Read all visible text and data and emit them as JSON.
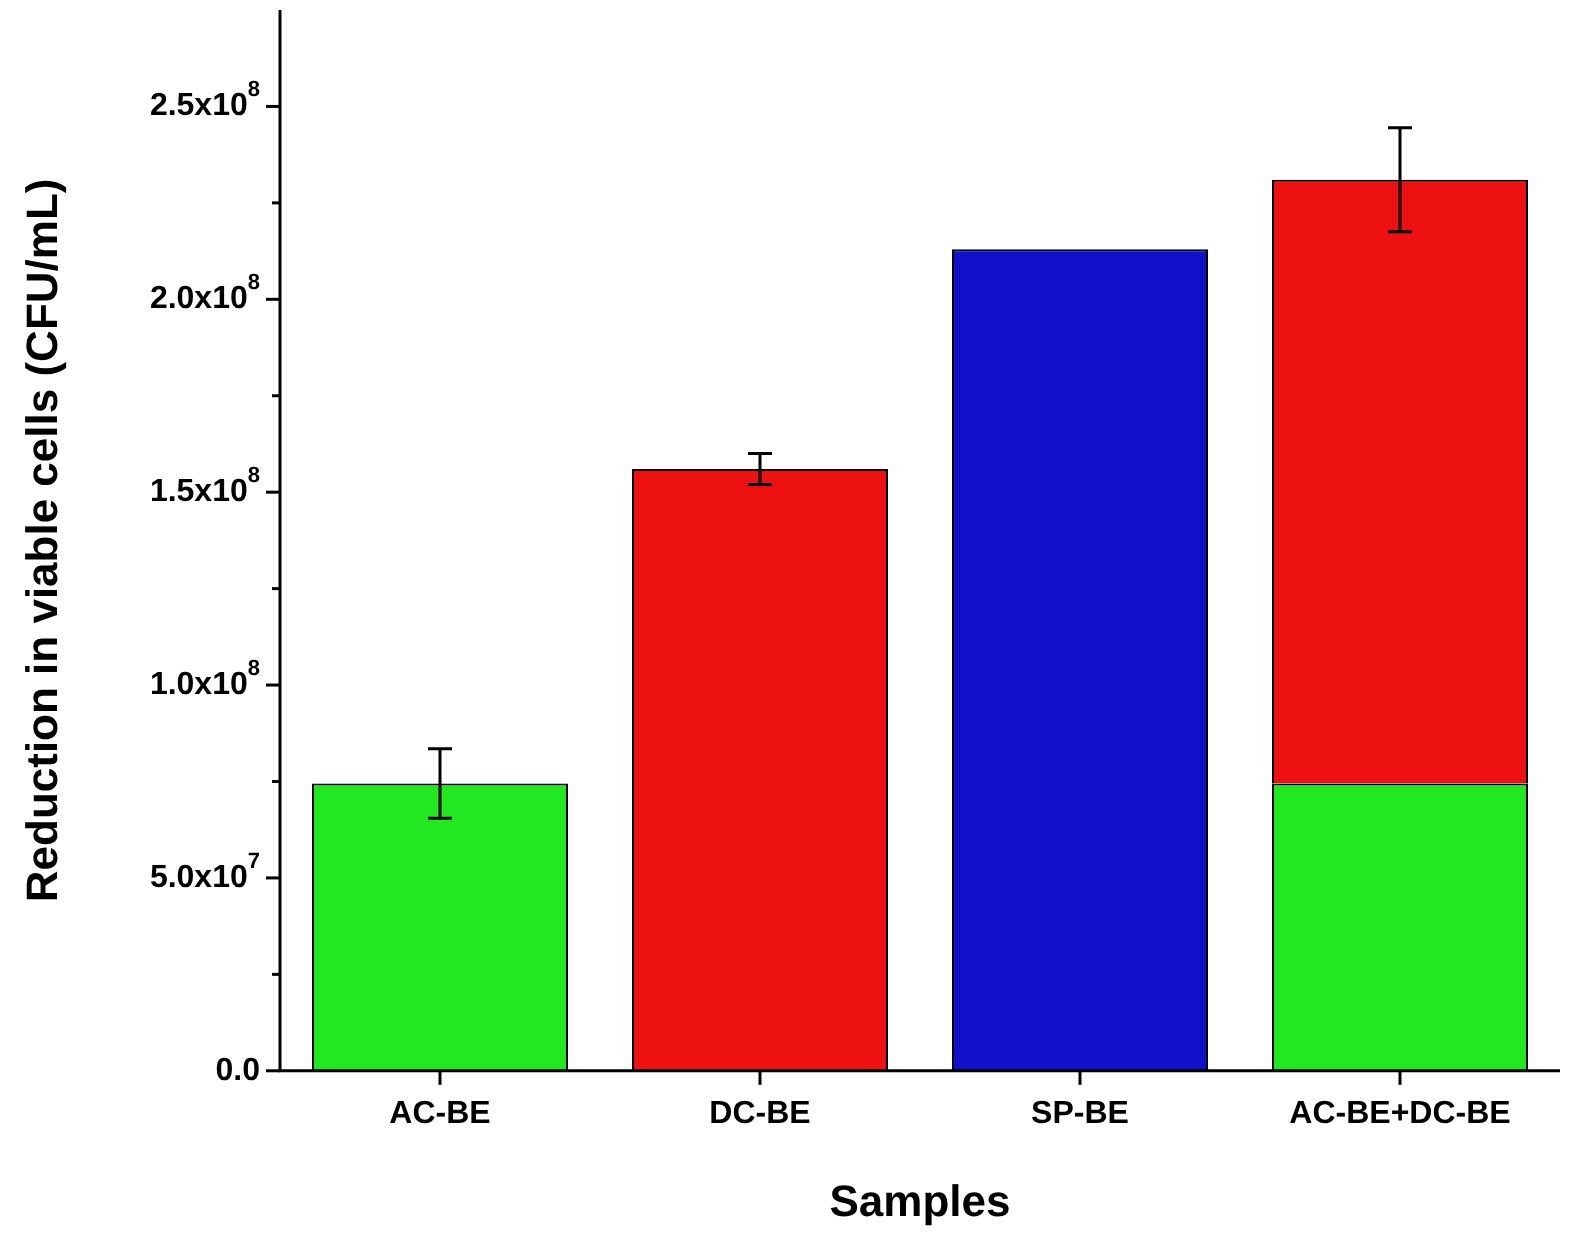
{
  "chart_data": {
    "type": "bar",
    "stacked": true,
    "xlabel": "Samples",
    "ylabel": "Reduction in viable cells (CFU/mL)",
    "categories": [
      "AC-BE",
      "DC-BE",
      "SP-BE",
      "AC-BE+DC-BE"
    ],
    "series": [
      {
        "color": "#22e822",
        "values": [
          74500000,
          null,
          null,
          74500000
        ],
        "errors": [
          9000000,
          null,
          null,
          null
        ]
      },
      {
        "color": "#ee1111",
        "values": [
          null,
          156000000,
          null,
          156500000
        ],
        "errors": [
          null,
          4000000,
          null,
          13500000
        ]
      },
      {
        "color": "#1111cc",
        "values": [
          null,
          null,
          213000000,
          null
        ]
      }
    ],
    "ylim": [
      0,
      275000000
    ],
    "yticks": [
      {
        "value": 0,
        "label": "0.0"
      },
      {
        "value": 25000000,
        "label": null
      },
      {
        "value": 50000000,
        "label": "5.0x10$^{7}$"
      },
      {
        "value": 75000000,
        "label": null
      },
      {
        "value": 100000000,
        "label": "1.0x10$^{8}$"
      },
      {
        "value": 125000000,
        "label": null
      },
      {
        "value": 150000000,
        "label": "1.5x10$^{8}$"
      },
      {
        "value": 175000000,
        "label": null
      },
      {
        "value": 200000000,
        "label": "2.0x10$^{8}$"
      },
      {
        "value": 225000000,
        "label": null
      },
      {
        "value": 250000000,
        "label": "2.5x10$^{8}$"
      }
    ],
    "grid": false,
    "legend": false
  }
}
